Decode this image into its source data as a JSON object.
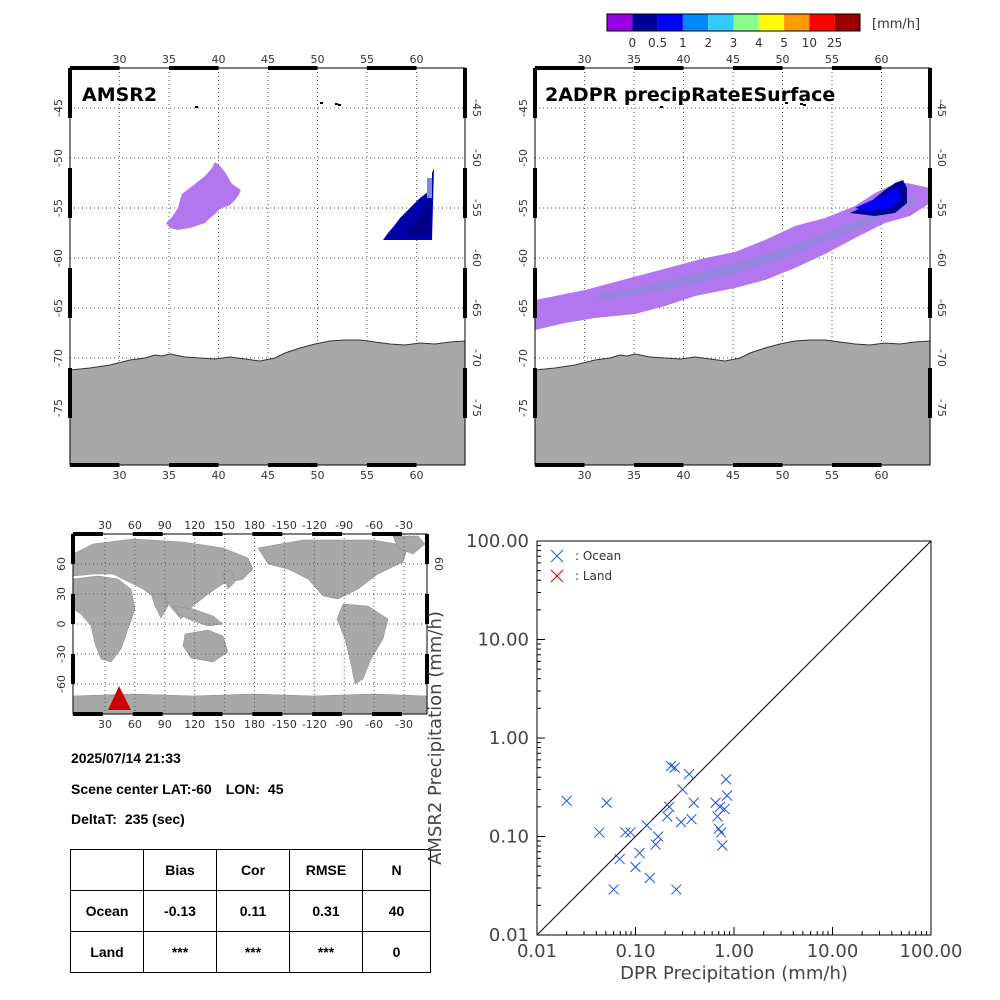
{
  "colorbar": {
    "unit": "[mm/h]",
    "colors": [
      "#9a00e6",
      "#000099",
      "#0000ff",
      "#0088ff",
      "#33ccff",
      "#88ff88",
      "#ffff00",
      "#ff9900",
      "#ff0000",
      "#990000"
    ],
    "labels": [
      "0",
      "0.5",
      "1",
      "2",
      "3",
      "4",
      "5",
      "10",
      "25"
    ]
  },
  "maps": {
    "lon_ticks": [
      "30",
      "35",
      "40",
      "45",
      "50",
      "55",
      "60"
    ],
    "lat_ticks": [
      "-45",
      "-50",
      "-55",
      "-60",
      "-65",
      "-70",
      "-75"
    ],
    "amsr2": {
      "title": "AMSR2"
    },
    "dpr": {
      "title": "2ADPR precipRateESurface"
    }
  },
  "overview": {
    "lon_ticks": [
      "30",
      "60",
      "90",
      "120",
      "150",
      "180",
      "-150",
      "-120",
      "-90",
      "-60",
      "-30"
    ],
    "lat_ticks": [
      "60",
      "30",
      "0",
      "-30",
      "-60"
    ],
    "right_lat_ticks": [
      "60",
      "",
      "",
      "",
      ""
    ],
    "marker_color": "#cc0000"
  },
  "info": {
    "datetime": "2025/07/14 21:33",
    "scene_center_label": "Scene center",
    "lat_label": "LAT:",
    "lat_value": "-60",
    "lon_label": "LON:",
    "lon_value": "45",
    "deltat_label": "DeltaT:",
    "deltat_value": "235 (sec)"
  },
  "stats": {
    "headers": [
      "",
      "Bias",
      "Cor",
      "RMSE",
      "N"
    ],
    "rows": [
      {
        "label": "Ocean",
        "values": [
          "-0.13",
          "0.11",
          "0.31",
          "40"
        ]
      },
      {
        "label": "Land",
        "values": [
          "***",
          "***",
          "***",
          "0"
        ]
      }
    ]
  },
  "chart_data": {
    "type": "scatter",
    "xlabel": "DPR Precipitation (mm/h)",
    "ylabel": "AMSR2 Precipitation (mm/h)",
    "xscale": "log",
    "yscale": "log",
    "xlim": [
      0.01,
      100
    ],
    "ylim": [
      0.01,
      100
    ],
    "xticks": [
      "0.01",
      "0.10",
      "1.00",
      "10.00",
      "100.00"
    ],
    "yticks": [
      "0.01",
      "0.10",
      "1.00",
      "10.00",
      "100.00"
    ],
    "one_to_one_line": true,
    "legend_position": "top-left",
    "series": [
      {
        "name": ": Ocean",
        "color": "#2255dd",
        "marker": "x",
        "points": [
          [
            0.02,
            0.23
          ],
          [
            0.043,
            0.11
          ],
          [
            0.051,
            0.22
          ],
          [
            0.06,
            0.029
          ],
          [
            0.069,
            0.059
          ],
          [
            0.079,
            0.11
          ],
          [
            0.089,
            0.11
          ],
          [
            0.1,
            0.049
          ],
          [
            0.11,
            0.068
          ],
          [
            0.13,
            0.13
          ],
          [
            0.14,
            0.038
          ],
          [
            0.16,
            0.083
          ],
          [
            0.17,
            0.1
          ],
          [
            0.21,
            0.16
          ],
          [
            0.22,
            0.2
          ],
          [
            0.23,
            0.52
          ],
          [
            0.25,
            0.5
          ],
          [
            0.26,
            0.029
          ],
          [
            0.29,
            0.14
          ],
          [
            0.3,
            0.3
          ],
          [
            0.35,
            0.43
          ],
          [
            0.37,
            0.15
          ],
          [
            0.39,
            0.22
          ],
          [
            0.65,
            0.22
          ],
          [
            0.68,
            0.16
          ],
          [
            0.7,
            0.12
          ],
          [
            0.72,
            0.2
          ],
          [
            0.74,
            0.11
          ],
          [
            0.76,
            0.081
          ],
          [
            0.8,
            0.19
          ],
          [
            0.83,
            0.38
          ],
          [
            0.85,
            0.26
          ]
        ]
      },
      {
        "name": ": Land",
        "color": "#cc0000",
        "marker": "x",
        "points": []
      }
    ]
  }
}
